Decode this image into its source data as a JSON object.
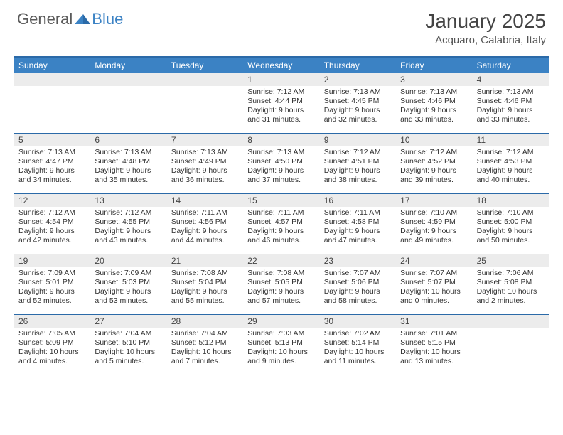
{
  "logo": {
    "text1": "General",
    "text2": "Blue"
  },
  "title": "January 2025",
  "location": "Acquaro, Calabria, Italy",
  "colors": {
    "header_bg": "#3b82c4",
    "header_border": "#2b6aa8",
    "daynum_bg": "#ececec",
    "text": "#333333",
    "logo_gray": "#5a5a5a",
    "logo_blue": "#3b82c4"
  },
  "day_names": [
    "Sunday",
    "Monday",
    "Tuesday",
    "Wednesday",
    "Thursday",
    "Friday",
    "Saturday"
  ],
  "weeks": [
    [
      {
        "day": "",
        "lines": []
      },
      {
        "day": "",
        "lines": []
      },
      {
        "day": "",
        "lines": []
      },
      {
        "day": "1",
        "lines": [
          "Sunrise: 7:12 AM",
          "Sunset: 4:44 PM",
          "Daylight: 9 hours",
          "and 31 minutes."
        ]
      },
      {
        "day": "2",
        "lines": [
          "Sunrise: 7:13 AM",
          "Sunset: 4:45 PM",
          "Daylight: 9 hours",
          "and 32 minutes."
        ]
      },
      {
        "day": "3",
        "lines": [
          "Sunrise: 7:13 AM",
          "Sunset: 4:46 PM",
          "Daylight: 9 hours",
          "and 33 minutes."
        ]
      },
      {
        "day": "4",
        "lines": [
          "Sunrise: 7:13 AM",
          "Sunset: 4:46 PM",
          "Daylight: 9 hours",
          "and 33 minutes."
        ]
      }
    ],
    [
      {
        "day": "5",
        "lines": [
          "Sunrise: 7:13 AM",
          "Sunset: 4:47 PM",
          "Daylight: 9 hours",
          "and 34 minutes."
        ]
      },
      {
        "day": "6",
        "lines": [
          "Sunrise: 7:13 AM",
          "Sunset: 4:48 PM",
          "Daylight: 9 hours",
          "and 35 minutes."
        ]
      },
      {
        "day": "7",
        "lines": [
          "Sunrise: 7:13 AM",
          "Sunset: 4:49 PM",
          "Daylight: 9 hours",
          "and 36 minutes."
        ]
      },
      {
        "day": "8",
        "lines": [
          "Sunrise: 7:13 AM",
          "Sunset: 4:50 PM",
          "Daylight: 9 hours",
          "and 37 minutes."
        ]
      },
      {
        "day": "9",
        "lines": [
          "Sunrise: 7:12 AM",
          "Sunset: 4:51 PM",
          "Daylight: 9 hours",
          "and 38 minutes."
        ]
      },
      {
        "day": "10",
        "lines": [
          "Sunrise: 7:12 AM",
          "Sunset: 4:52 PM",
          "Daylight: 9 hours",
          "and 39 minutes."
        ]
      },
      {
        "day": "11",
        "lines": [
          "Sunrise: 7:12 AM",
          "Sunset: 4:53 PM",
          "Daylight: 9 hours",
          "and 40 minutes."
        ]
      }
    ],
    [
      {
        "day": "12",
        "lines": [
          "Sunrise: 7:12 AM",
          "Sunset: 4:54 PM",
          "Daylight: 9 hours",
          "and 42 minutes."
        ]
      },
      {
        "day": "13",
        "lines": [
          "Sunrise: 7:12 AM",
          "Sunset: 4:55 PM",
          "Daylight: 9 hours",
          "and 43 minutes."
        ]
      },
      {
        "day": "14",
        "lines": [
          "Sunrise: 7:11 AM",
          "Sunset: 4:56 PM",
          "Daylight: 9 hours",
          "and 44 minutes."
        ]
      },
      {
        "day": "15",
        "lines": [
          "Sunrise: 7:11 AM",
          "Sunset: 4:57 PM",
          "Daylight: 9 hours",
          "and 46 minutes."
        ]
      },
      {
        "day": "16",
        "lines": [
          "Sunrise: 7:11 AM",
          "Sunset: 4:58 PM",
          "Daylight: 9 hours",
          "and 47 minutes."
        ]
      },
      {
        "day": "17",
        "lines": [
          "Sunrise: 7:10 AM",
          "Sunset: 4:59 PM",
          "Daylight: 9 hours",
          "and 49 minutes."
        ]
      },
      {
        "day": "18",
        "lines": [
          "Sunrise: 7:10 AM",
          "Sunset: 5:00 PM",
          "Daylight: 9 hours",
          "and 50 minutes."
        ]
      }
    ],
    [
      {
        "day": "19",
        "lines": [
          "Sunrise: 7:09 AM",
          "Sunset: 5:01 PM",
          "Daylight: 9 hours",
          "and 52 minutes."
        ]
      },
      {
        "day": "20",
        "lines": [
          "Sunrise: 7:09 AM",
          "Sunset: 5:03 PM",
          "Daylight: 9 hours",
          "and 53 minutes."
        ]
      },
      {
        "day": "21",
        "lines": [
          "Sunrise: 7:08 AM",
          "Sunset: 5:04 PM",
          "Daylight: 9 hours",
          "and 55 minutes."
        ]
      },
      {
        "day": "22",
        "lines": [
          "Sunrise: 7:08 AM",
          "Sunset: 5:05 PM",
          "Daylight: 9 hours",
          "and 57 minutes."
        ]
      },
      {
        "day": "23",
        "lines": [
          "Sunrise: 7:07 AM",
          "Sunset: 5:06 PM",
          "Daylight: 9 hours",
          "and 58 minutes."
        ]
      },
      {
        "day": "24",
        "lines": [
          "Sunrise: 7:07 AM",
          "Sunset: 5:07 PM",
          "Daylight: 10 hours",
          "and 0 minutes."
        ]
      },
      {
        "day": "25",
        "lines": [
          "Sunrise: 7:06 AM",
          "Sunset: 5:08 PM",
          "Daylight: 10 hours",
          "and 2 minutes."
        ]
      }
    ],
    [
      {
        "day": "26",
        "lines": [
          "Sunrise: 7:05 AM",
          "Sunset: 5:09 PM",
          "Daylight: 10 hours",
          "and 4 minutes."
        ]
      },
      {
        "day": "27",
        "lines": [
          "Sunrise: 7:04 AM",
          "Sunset: 5:10 PM",
          "Daylight: 10 hours",
          "and 5 minutes."
        ]
      },
      {
        "day": "28",
        "lines": [
          "Sunrise: 7:04 AM",
          "Sunset: 5:12 PM",
          "Daylight: 10 hours",
          "and 7 minutes."
        ]
      },
      {
        "day": "29",
        "lines": [
          "Sunrise: 7:03 AM",
          "Sunset: 5:13 PM",
          "Daylight: 10 hours",
          "and 9 minutes."
        ]
      },
      {
        "day": "30",
        "lines": [
          "Sunrise: 7:02 AM",
          "Sunset: 5:14 PM",
          "Daylight: 10 hours",
          "and 11 minutes."
        ]
      },
      {
        "day": "31",
        "lines": [
          "Sunrise: 7:01 AM",
          "Sunset: 5:15 PM",
          "Daylight: 10 hours",
          "and 13 minutes."
        ]
      },
      {
        "day": "",
        "lines": []
      }
    ]
  ]
}
